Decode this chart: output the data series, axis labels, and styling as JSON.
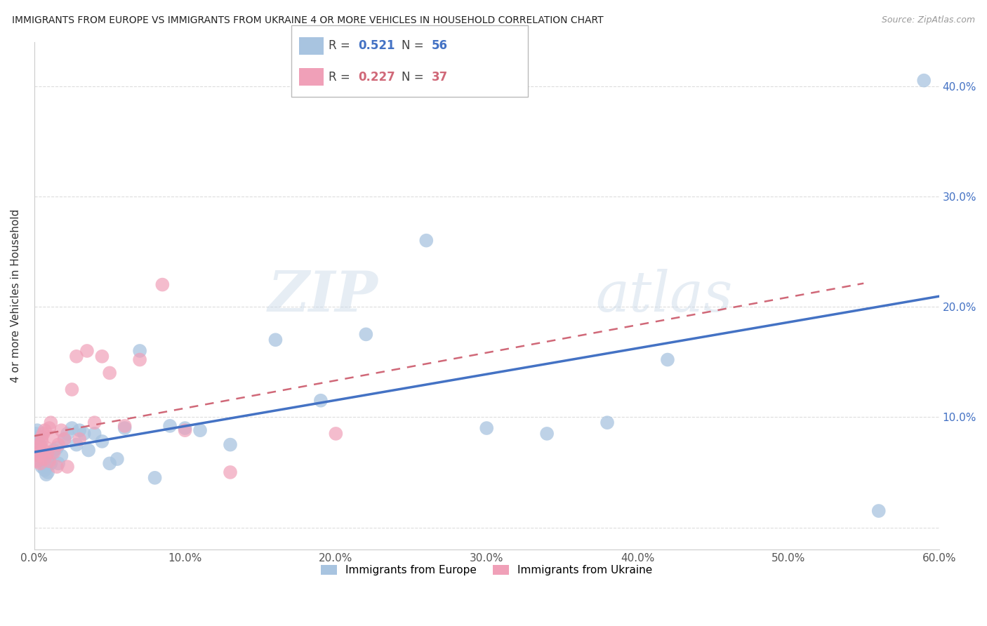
{
  "title": "IMMIGRANTS FROM EUROPE VS IMMIGRANTS FROM UKRAINE 4 OR MORE VEHICLES IN HOUSEHOLD CORRELATION CHART",
  "source": "Source: ZipAtlas.com",
  "ylabel": "4 or more Vehicles in Household",
  "xlim": [
    0.0,
    0.6
  ],
  "ylim": [
    -0.02,
    0.44
  ],
  "xticks": [
    0.0,
    0.1,
    0.2,
    0.3,
    0.4,
    0.5,
    0.6
  ],
  "yticks_right": [
    0.0,
    0.1,
    0.2,
    0.3,
    0.4
  ],
  "ytick_labels_right": [
    "",
    "10.0%",
    "20.0%",
    "30.0%",
    "40.0%"
  ],
  "xtick_labels": [
    "0.0%",
    "10.0%",
    "20.0%",
    "30.0%",
    "40.0%",
    "50.0%",
    "60.0%"
  ],
  "legend1_label": "Immigrants from Europe",
  "legend2_label": "Immigrants from Ukraine",
  "R1": 0.521,
  "N1": 56,
  "R2": 0.227,
  "N2": 37,
  "color_europe": "#a8c4e0",
  "color_ukraine": "#f0a0b8",
  "color_europe_line": "#4472c4",
  "color_ukraine_line": "#c0607880",
  "watermark_zip": "ZIP",
  "watermark_atlas": "atlas",
  "europe_x": [
    0.001,
    0.001,
    0.001,
    0.002,
    0.002,
    0.002,
    0.003,
    0.003,
    0.003,
    0.004,
    0.004,
    0.004,
    0.005,
    0.005,
    0.006,
    0.006,
    0.007,
    0.007,
    0.008,
    0.008,
    0.009,
    0.01,
    0.011,
    0.012,
    0.013,
    0.015,
    0.016,
    0.018,
    0.02,
    0.022,
    0.025,
    0.028,
    0.03,
    0.033,
    0.036,
    0.04,
    0.045,
    0.05,
    0.055,
    0.06,
    0.07,
    0.08,
    0.09,
    0.1,
    0.11,
    0.13,
    0.16,
    0.19,
    0.22,
    0.26,
    0.3,
    0.34,
    0.38,
    0.42,
    0.56,
    0.59
  ],
  "europe_y": [
    0.075,
    0.08,
    0.085,
    0.072,
    0.078,
    0.088,
    0.065,
    0.07,
    0.082,
    0.06,
    0.068,
    0.075,
    0.055,
    0.062,
    0.058,
    0.065,
    0.052,
    0.06,
    0.048,
    0.055,
    0.05,
    0.062,
    0.058,
    0.068,
    0.07,
    0.072,
    0.058,
    0.065,
    0.08,
    0.085,
    0.09,
    0.075,
    0.088,
    0.085,
    0.07,
    0.085,
    0.078,
    0.058,
    0.062,
    0.09,
    0.16,
    0.045,
    0.092,
    0.09,
    0.088,
    0.075,
    0.17,
    0.115,
    0.175,
    0.26,
    0.09,
    0.085,
    0.095,
    0.152,
    0.015,
    0.405
  ],
  "ukraine_x": [
    0.001,
    0.002,
    0.002,
    0.003,
    0.003,
    0.004,
    0.005,
    0.005,
    0.006,
    0.006,
    0.007,
    0.007,
    0.008,
    0.009,
    0.01,
    0.01,
    0.011,
    0.012,
    0.013,
    0.015,
    0.016,
    0.018,
    0.02,
    0.022,
    0.025,
    0.028,
    0.03,
    0.035,
    0.04,
    0.045,
    0.05,
    0.06,
    0.07,
    0.085,
    0.1,
    0.13,
    0.2
  ],
  "ukraine_y": [
    0.072,
    0.06,
    0.068,
    0.065,
    0.075,
    0.058,
    0.082,
    0.078,
    0.07,
    0.085,
    0.062,
    0.088,
    0.072,
    0.068,
    0.09,
    0.06,
    0.095,
    0.082,
    0.068,
    0.055,
    0.075,
    0.088,
    0.08,
    0.055,
    0.125,
    0.155,
    0.08,
    0.16,
    0.095,
    0.155,
    0.14,
    0.092,
    0.152,
    0.22,
    0.088,
    0.05,
    0.085
  ]
}
